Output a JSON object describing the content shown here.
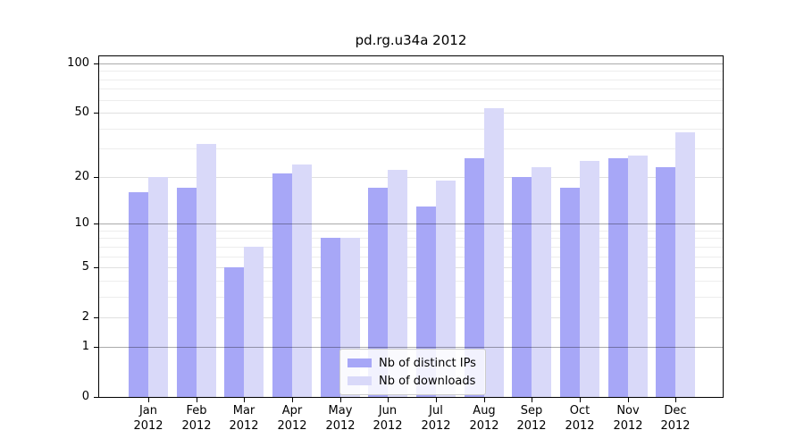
{
  "chart_data": {
    "type": "bar",
    "title": "pd.rg.u34a 2012",
    "months": [
      "Jan",
      "Feb",
      "Mar",
      "Apr",
      "May",
      "Jun",
      "Jul",
      "Aug",
      "Sep",
      "Oct",
      "Nov",
      "Dec"
    ],
    "year_label": "2012",
    "series": [
      {
        "name": "Nb of distinct IPs",
        "color": "#a7a7f7",
        "values": [
          16,
          17,
          5,
          21,
          8,
          17,
          13,
          26,
          20,
          17,
          26,
          23
        ]
      },
      {
        "name": "Nb of downloads",
        "color": "#d9d9f9",
        "values": [
          20,
          32,
          7,
          24,
          8,
          22,
          19,
          53,
          23,
          25,
          27,
          38
        ]
      }
    ],
    "y_axis": {
      "scale": "log1p",
      "tick_labels": [
        0,
        1,
        2,
        5,
        10,
        20,
        50,
        100
      ],
      "decade_gridlines": [
        1,
        10,
        100
      ],
      "light_gridlines": [
        2,
        5,
        20,
        50
      ],
      "minor_gridlines": [
        3,
        4,
        6,
        7,
        8,
        9,
        30,
        40,
        60,
        70,
        80,
        90
      ],
      "ylim": [
        0,
        112
      ]
    },
    "legend": {
      "location": "lower-center"
    },
    "grid": "on"
  },
  "colors": {
    "grid_minor": "#ededed",
    "grid_light": "#e0e0e0",
    "grid_decade": "rgba(0,0,0,0.33)",
    "spine": "#000000",
    "text": "#000000",
    "background": "#ffffff"
  }
}
